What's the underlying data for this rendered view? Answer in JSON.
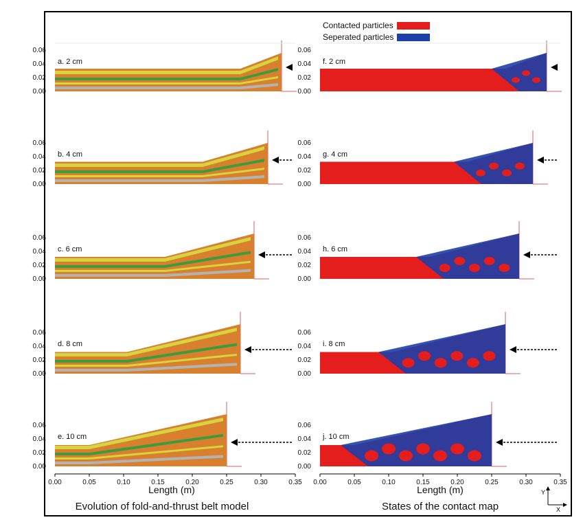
{
  "colors": {
    "contact_red": "#e41d1d",
    "separated_blue": "#1d3fa8",
    "orange": "#d9802f",
    "yellow": "#d7d43e",
    "green": "#3c9b3c",
    "gray": "#b3b3b3",
    "wall_line": "#d85c5c"
  },
  "legend": {
    "contacted": "Contacted particles",
    "separated": "Seperated particles"
  },
  "y_ticks": [
    "0.06",
    "0.04",
    "0.02",
    "0.00"
  ],
  "x_ticks": [
    "0.00",
    "0.05",
    "0.10",
    "0.15",
    "0.20",
    "0.25",
    "0.30",
    "0.35"
  ],
  "x_axis_label": "Length (m)",
  "captions": {
    "left": "Evolution of fold-and-thrust belt model",
    "right": "States of the contact map"
  },
  "compass": {
    "y": "Y",
    "x": "X"
  },
  "panels_left": [
    {
      "label": "a. 2 cm",
      "wall_x": 0.33,
      "peak_h": 0.056
    },
    {
      "label": "b. 4 cm",
      "wall_x": 0.31,
      "peak_h": 0.06
    },
    {
      "label": "c. 6 cm",
      "wall_x": 0.29,
      "peak_h": 0.066
    },
    {
      "label": "d. 8 cm",
      "wall_x": 0.27,
      "peak_h": 0.072
    },
    {
      "label": "e. 10 cm",
      "wall_x": 0.25,
      "peak_h": 0.076
    }
  ],
  "panels_right": [
    {
      "label": "f. 2 cm",
      "wall_x": 0.33,
      "peak_h": 0.056
    },
    {
      "label": "g. 4 cm",
      "wall_x": 0.31,
      "peak_h": 0.06
    },
    {
      "label": "h. 6 cm",
      "wall_x": 0.29,
      "peak_h": 0.066
    },
    {
      "label": "i. 8 cm",
      "wall_x": 0.27,
      "peak_h": 0.072
    },
    {
      "label": "j. 10 cm",
      "wall_x": 0.25,
      "peak_h": 0.076
    }
  ]
}
